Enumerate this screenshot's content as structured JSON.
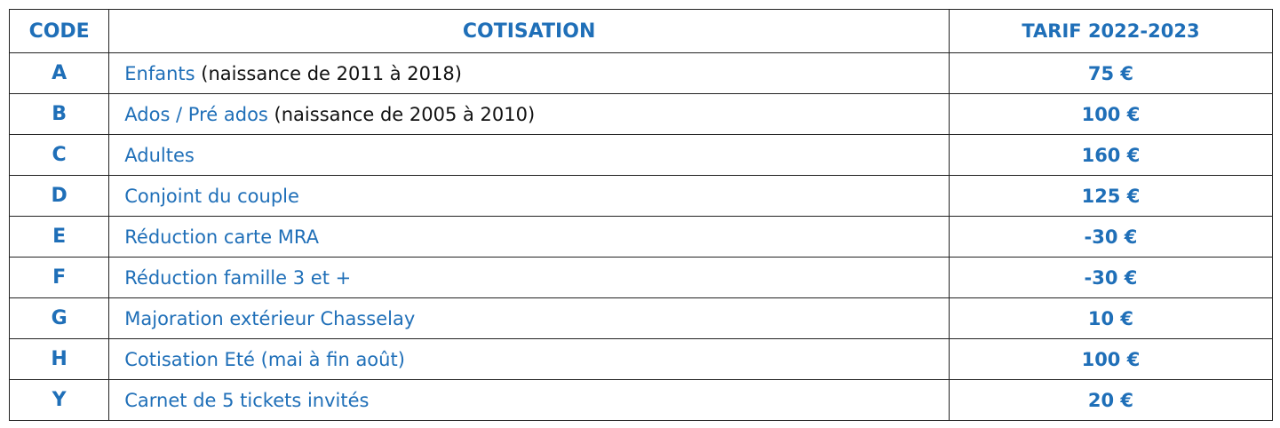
{
  "table": {
    "header": [
      "CODE",
      "COTISATION",
      "TARIF 2022-2023"
    ],
    "rows": [
      {
        "code": "A",
        "label": "Enfants",
        "detail": "(naissance de 2011 à 2018)",
        "tarif": "75 €"
      },
      {
        "code": "B",
        "label": "Ados / Pré ados",
        "detail": "(naissance de 2005 à 2010)",
        "tarif": "100 €"
      },
      {
        "code": "C",
        "label": "Adultes",
        "tarif": "160 €"
      },
      {
        "code": "D",
        "label": "Conjoint du couple",
        "tarif": "125 €"
      },
      {
        "code": "E",
        "label": "Réduction carte MRA",
        "tarif": "-30 €"
      },
      {
        "code": "F",
        "label": "Réduction famille 3 et +",
        "tarif": "-30 €"
      },
      {
        "code": "G",
        "label": "Majoration extérieur Chasselay",
        "tarif": "10 €"
      },
      {
        "code": "H",
        "label": "Cotisation Eté (mai à fin août)",
        "tarif": "100 €"
      },
      {
        "code": "Y",
        "label": "Carnet de 5 tickets invités",
        "tarif": "20 €"
      }
    ]
  }
}
